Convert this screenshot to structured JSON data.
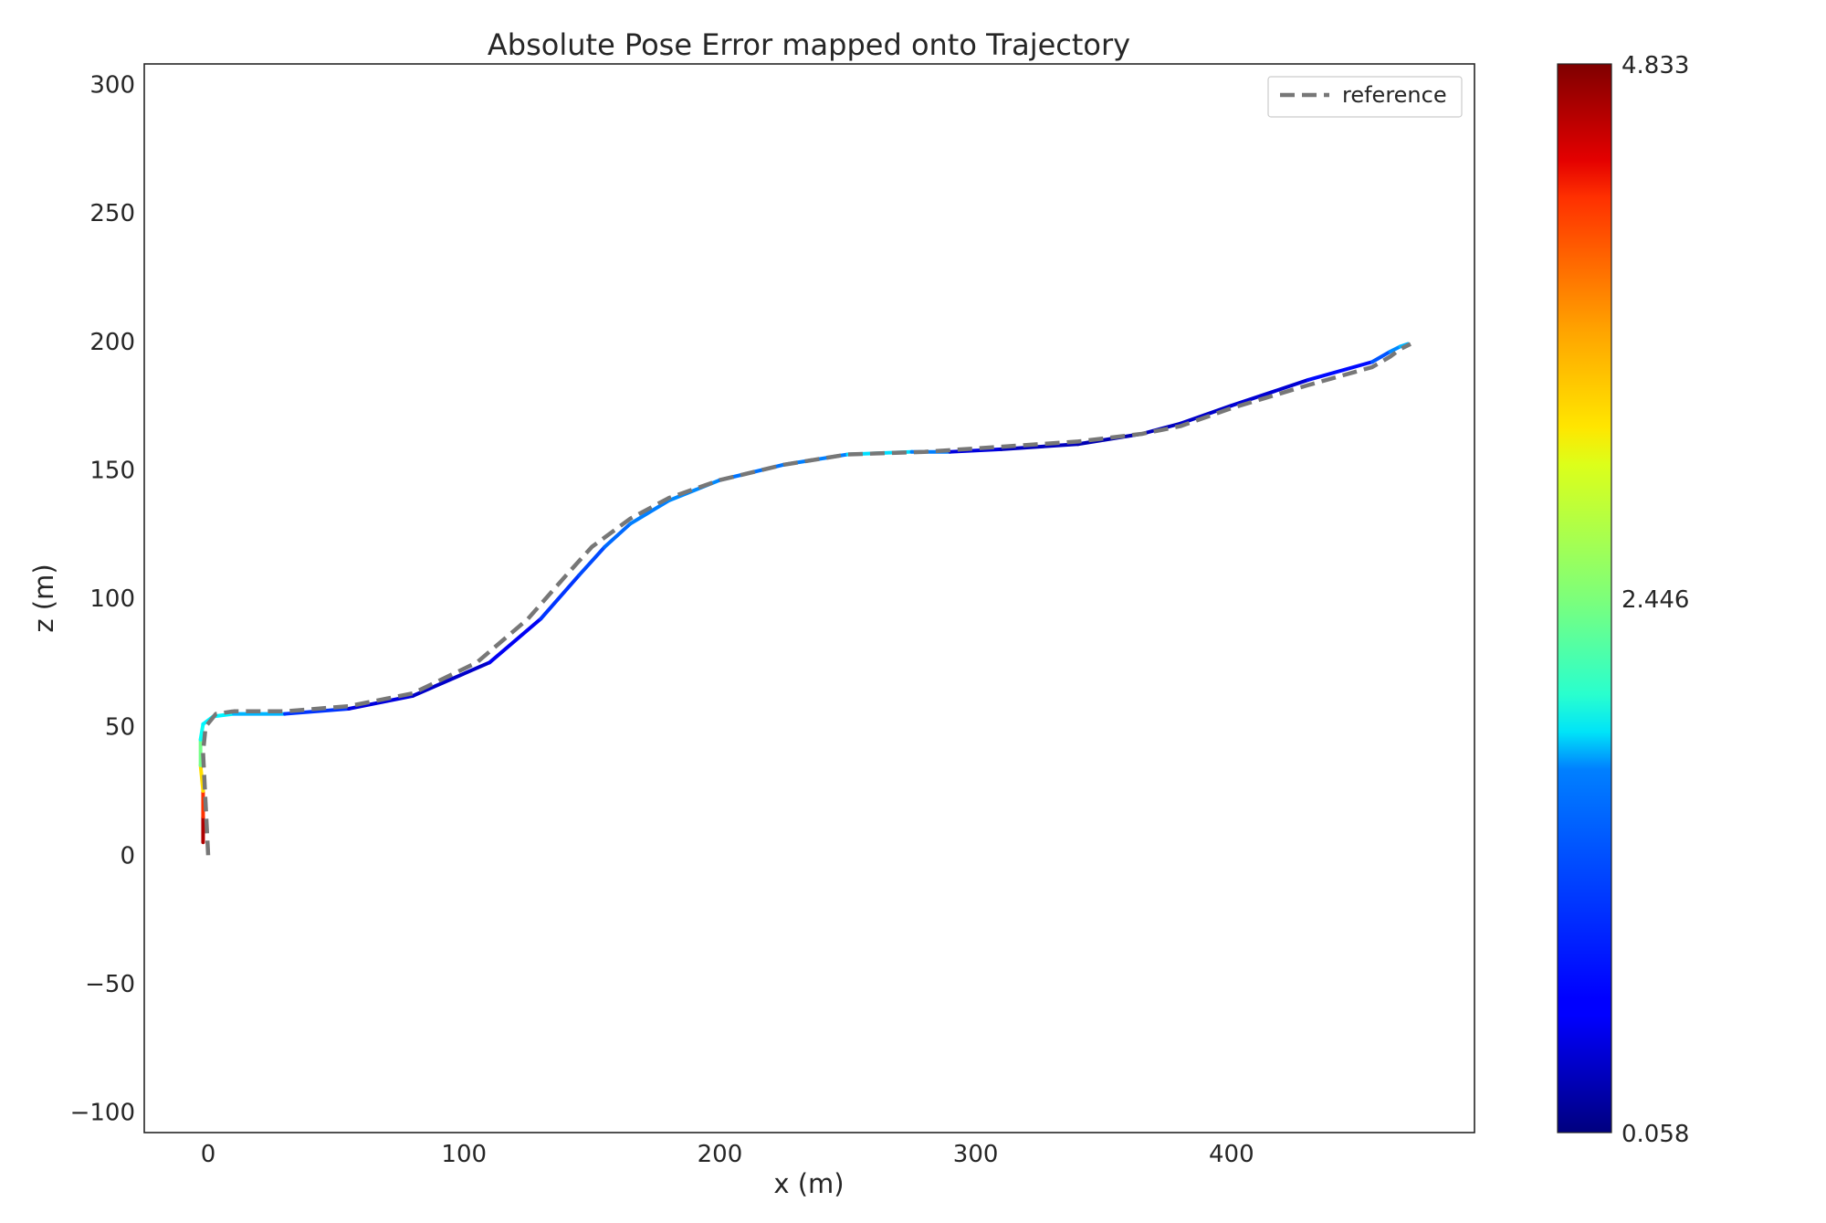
{
  "chart_data": {
    "type": "line",
    "title": "Absolute Pose Error mapped onto Trajectory",
    "xlabel": "x (m)",
    "ylabel": "z (m)",
    "xlim": [
      -25,
      495
    ],
    "ylim": [
      -108,
      308
    ],
    "xticks": [
      0,
      100,
      200,
      300,
      400
    ],
    "yticks": [
      -100,
      -50,
      0,
      50,
      100,
      150,
      200,
      250,
      300
    ],
    "xtick_labels": [
      "0",
      "100",
      "200",
      "300",
      "400"
    ],
    "ytick_labels": [
      "−100",
      "−50",
      "0",
      "50",
      "100",
      "150",
      "200",
      "250",
      "300"
    ],
    "grid": false,
    "legend": {
      "position": "top-right",
      "entries": [
        {
          "label": "reference",
          "style": "dashed",
          "color": "#777777"
        }
      ]
    },
    "colorbar": {
      "colormap": "jet",
      "min": 0.058,
      "mid": 2.446,
      "max": 4.833,
      "tick_labels": [
        "4.833",
        "2.446",
        "0.058"
      ]
    },
    "series": [
      {
        "name": "reference",
        "style": "dashed",
        "color": "#777777",
        "points": [
          [
            0,
            0
          ],
          [
            -1,
            20
          ],
          [
            -2,
            40
          ],
          [
            -1,
            50
          ],
          [
            3,
            55
          ],
          [
            10,
            56
          ],
          [
            30,
            56
          ],
          [
            55,
            58
          ],
          [
            80,
            63
          ],
          [
            105,
            75
          ],
          [
            125,
            92
          ],
          [
            140,
            109
          ],
          [
            150,
            120
          ],
          [
            165,
            131
          ],
          [
            180,
            139
          ],
          [
            200,
            146
          ],
          [
            225,
            152
          ],
          [
            250,
            156
          ],
          [
            280,
            157
          ],
          [
            310,
            159
          ],
          [
            340,
            161
          ],
          [
            365,
            164
          ],
          [
            380,
            167
          ],
          [
            400,
            174
          ],
          [
            430,
            183
          ],
          [
            455,
            190
          ],
          [
            462,
            194
          ],
          [
            466,
            197
          ],
          [
            470,
            199
          ]
        ]
      },
      {
        "style": "colormapped",
        "error_note": "color encodes absolute pose error",
        "points": [
          [
            -2,
            5,
            4.833
          ],
          [
            -2,
            15,
            4.4
          ],
          [
            -2,
            25,
            3.6
          ],
          [
            -3,
            35,
            2.8
          ],
          [
            -3,
            45,
            2.0
          ],
          [
            -2,
            51,
            1.8
          ],
          [
            2,
            54,
            1.8
          ],
          [
            10,
            55,
            1.8
          ],
          [
            30,
            55,
            1.2
          ],
          [
            55,
            57,
            0.6
          ],
          [
            80,
            62,
            0.4
          ],
          [
            110,
            75,
            0.4
          ],
          [
            130,
            92,
            0.8
          ],
          [
            145,
            109,
            1.0
          ],
          [
            155,
            120,
            1.0
          ],
          [
            165,
            129,
            1.3
          ],
          [
            180,
            138,
            1.2
          ],
          [
            200,
            146,
            1.4
          ],
          [
            225,
            152,
            1.0
          ],
          [
            250,
            156,
            1.5
          ],
          [
            275,
            157,
            1.9
          ],
          [
            290,
            157,
            0.6
          ],
          [
            310,
            158,
            0.4
          ],
          [
            340,
            160,
            0.3
          ],
          [
            365,
            164,
            0.3
          ],
          [
            380,
            168,
            0.4
          ],
          [
            400,
            175,
            0.4
          ],
          [
            430,
            185,
            0.5
          ],
          [
            455,
            192,
            0.9
          ],
          [
            462,
            196,
            1.2
          ],
          [
            466,
            198,
            1.4
          ],
          [
            469,
            199,
            1.6
          ]
        ]
      }
    ]
  }
}
